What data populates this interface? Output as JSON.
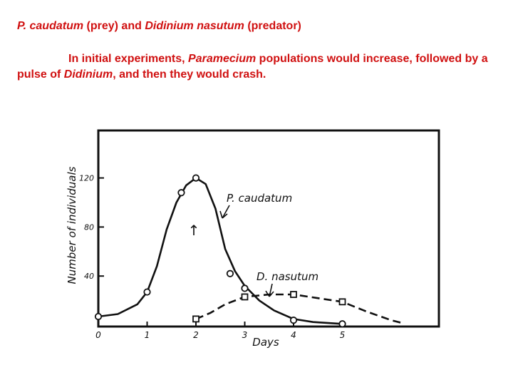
{
  "slide": {
    "title_italic1": "P. caudatum",
    "title_plain1": " (prey) and ",
    "title_italic2": "Didinium nasutum",
    "title_plain2": " (predator)",
    "body_plain1": "In initial experiments, ",
    "body_italic1": "Paramecium",
    "body_plain2": " populations would increase, followed by a pulse of ",
    "body_italic2": "Didinium",
    "body_plain3": ", and then they would crash."
  },
  "colors": {
    "text": "#d01010",
    "ink": "#111111"
  },
  "chart_data": {
    "type": "line",
    "xlabel": "Days",
    "ylabel": "Number of individuals",
    "xlim": [
      0,
      6.5
    ],
    "ylim": [
      0,
      160
    ],
    "xticks": [
      0,
      1,
      2,
      3,
      4,
      5
    ],
    "yticks": [
      40,
      80,
      120
    ],
    "grid": false,
    "series": [
      {
        "name": "P. caudatum",
        "style": "solid",
        "marker": "open-circle",
        "points": [
          [
            0,
            7
          ],
          [
            1,
            27
          ],
          [
            1.7,
            108
          ],
          [
            2,
            120
          ],
          [
            2.7,
            42
          ],
          [
            3,
            30
          ],
          [
            4,
            4
          ],
          [
            5,
            1
          ]
        ],
        "curve": [
          [
            0,
            7
          ],
          [
            0.4,
            9
          ],
          [
            0.8,
            17
          ],
          [
            1,
            27
          ],
          [
            1.2,
            48
          ],
          [
            1.4,
            78
          ],
          [
            1.6,
            100
          ],
          [
            1.8,
            114
          ],
          [
            2,
            120
          ],
          [
            2.2,
            115
          ],
          [
            2.4,
            95
          ],
          [
            2.6,
            62
          ],
          [
            2.8,
            44
          ],
          [
            3,
            32
          ],
          [
            3.3,
            20
          ],
          [
            3.6,
            12
          ],
          [
            4,
            5
          ],
          [
            4.4,
            2.5
          ],
          [
            5,
            1
          ]
        ]
      },
      {
        "name": "D. nasutum",
        "style": "dashed",
        "marker": "open-square",
        "points": [
          [
            2,
            5
          ],
          [
            3,
            23
          ],
          [
            4,
            25
          ],
          [
            5,
            19
          ]
        ],
        "curve": [
          [
            2,
            5
          ],
          [
            2.3,
            10
          ],
          [
            2.6,
            17
          ],
          [
            3,
            23
          ],
          [
            3.5,
            25
          ],
          [
            4,
            25
          ],
          [
            4.5,
            22
          ],
          [
            5,
            19
          ],
          [
            5.5,
            11
          ],
          [
            6,
            4
          ],
          [
            6.2,
            2
          ]
        ]
      }
    ],
    "annotations": [
      {
        "text": "P. caudatum",
        "target_series": "P. caudatum"
      },
      {
        "text": "D. nasutum",
        "target_series": "D. nasutum"
      },
      {
        "text": "↑",
        "at": [
          2,
          84
        ]
      }
    ]
  }
}
